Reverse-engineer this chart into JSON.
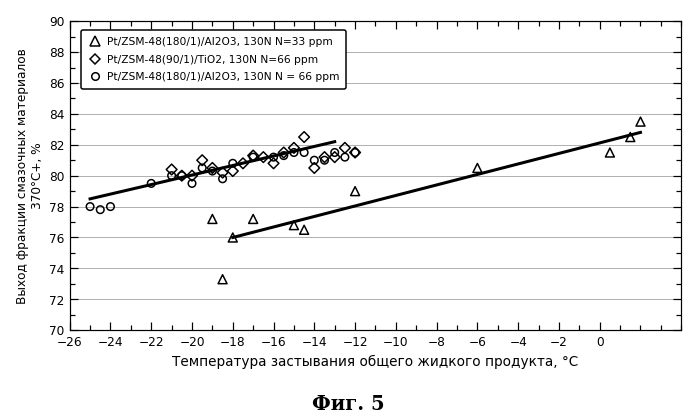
{
  "title": "Фиг. 5",
  "xlabel": "Температура застывания общего жидкого продукта, °C",
  "ylabel": "Выход фракции смазочных материалов\n370°C+, %",
  "xlim": [
    -26,
    4
  ],
  "ylim": [
    70,
    90
  ],
  "xticks": [
    -26,
    -24,
    -22,
    -20,
    -18,
    -16,
    -14,
    -12,
    -10,
    -8,
    -6,
    -4,
    -2,
    0
  ],
  "yticks": [
    70,
    72,
    74,
    76,
    78,
    80,
    82,
    84,
    86,
    88,
    90
  ],
  "series1_label": "Pt/ZSM-48(180/1)/Al2O3, 130N N=33 ppm",
  "series2_label": "Pt/ZSM-48(90/1)/TiO2, 130N N=66 ppm",
  "series3_label": "Pt/ZSM-48(180/1)/Al2O3, 130N N = 66 ppm",
  "series1_x": [
    -19.0,
    -18.5,
    -18.0,
    -17.0,
    -15.0,
    -14.5,
    -12.0,
    -6.0,
    0.5,
    1.5,
    2.0
  ],
  "series1_y": [
    77.2,
    73.3,
    76.0,
    77.2,
    76.8,
    76.5,
    79.0,
    80.5,
    81.5,
    82.5,
    83.5
  ],
  "series2_x": [
    -21.0,
    -20.5,
    -20.0,
    -19.5,
    -19.0,
    -18.5,
    -18.0,
    -17.5,
    -17.0,
    -16.5,
    -16.0,
    -15.5,
    -15.0,
    -14.5,
    -14.0,
    -13.5,
    -13.0,
    -12.5,
    -12.0
  ],
  "series2_y": [
    80.4,
    80.0,
    80.0,
    81.0,
    80.5,
    80.2,
    80.3,
    80.8,
    81.3,
    81.2,
    80.8,
    81.5,
    81.8,
    82.5,
    80.5,
    81.2,
    81.2,
    81.8,
    81.5
  ],
  "series3_x": [
    -25.0,
    -24.5,
    -24.0,
    -22.0,
    -21.0,
    -20.5,
    -20.0,
    -19.5,
    -19.0,
    -18.5,
    -18.0,
    -17.0,
    -16.0,
    -15.5,
    -15.0,
    -14.5,
    -14.0,
    -13.5,
    -13.0,
    -12.5,
    -12.0
  ],
  "series3_y": [
    78.0,
    77.8,
    78.0,
    79.5,
    80.0,
    80.0,
    79.5,
    80.5,
    80.3,
    79.8,
    80.8,
    81.2,
    81.2,
    81.3,
    81.5,
    81.5,
    81.0,
    81.0,
    81.5,
    81.2,
    81.5
  ],
  "trendline1_x": [
    -18.0,
    2.0
  ],
  "trendline1_y": [
    76.0,
    82.8
  ],
  "trendline2_x": [
    -25.0,
    -13.0
  ],
  "trendline2_y": [
    78.5,
    82.2
  ],
  "background_color": "#ffffff"
}
